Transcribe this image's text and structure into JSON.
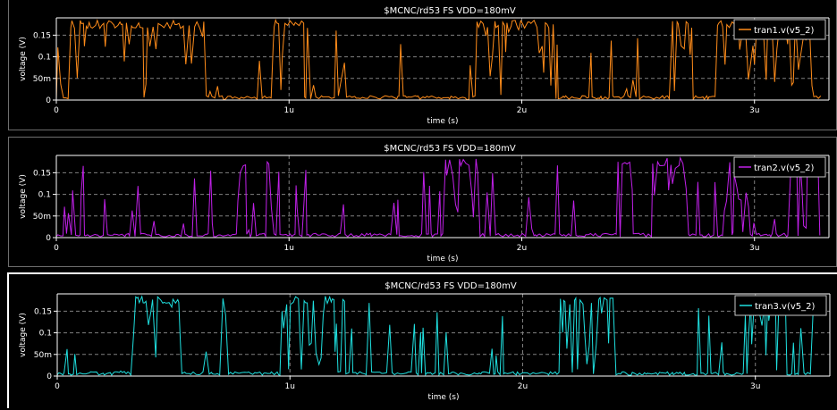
{
  "colors": {
    "background": "#000000",
    "grid": "#808080",
    "axis": "#ffffff",
    "legend_border": "#c8c8c8"
  },
  "chart_data": [
    {
      "type": "line",
      "title": "$MCNC/rd53 FS VDD=180mV",
      "xlabel": "time (s)",
      "ylabel": "voltage (V)",
      "xlim": [
        0,
        3.32
      ],
      "ylim": [
        0,
        0.19
      ],
      "x_ticks": [
        {
          "value": 0,
          "label": "0"
        },
        {
          "value": 1,
          "label": "1u"
        },
        {
          "value": 2,
          "label": "2u"
        },
        {
          "value": 3,
          "label": "3u"
        }
      ],
      "y_ticks": [
        {
          "value": 0,
          "label": "0"
        },
        {
          "value": 0.05,
          "label": "50m"
        },
        {
          "value": 0.1,
          "label": "0.1"
        },
        {
          "value": 0.15,
          "label": "0.15"
        }
      ],
      "grid": true,
      "legend_position": "top-right",
      "series": [
        {
          "name": "tran1.v(v5_2)",
          "color": "#ff8c1a",
          "seed": 11,
          "density": 0.42
        }
      ]
    },
    {
      "type": "line",
      "title": "$MCNC/rd53 FS VDD=180mV",
      "xlabel": "time (s)",
      "ylabel": "voltage (V)",
      "xlim": [
        0,
        3.32
      ],
      "ylim": [
        0,
        0.19
      ],
      "x_ticks": [
        {
          "value": 0,
          "label": "0"
        },
        {
          "value": 1,
          "label": "1u"
        },
        {
          "value": 2,
          "label": "2u"
        },
        {
          "value": 3,
          "label": "3u"
        }
      ],
      "y_ticks": [
        {
          "value": 0,
          "label": "0"
        },
        {
          "value": 0.05,
          "label": "50m"
        },
        {
          "value": 0.1,
          "label": "0.1"
        },
        {
          "value": 0.15,
          "label": "0.15"
        }
      ],
      "grid": true,
      "legend_position": "top-right",
      "series": [
        {
          "name": "tran2.v(v5_2)",
          "color": "#c020e8",
          "seed": 23,
          "density": 0.38
        }
      ]
    },
    {
      "type": "line",
      "title": "$MCNC/rd53 FS VDD=180mV",
      "xlabel": "time (s)",
      "ylabel": "voltage (V)",
      "xlim": [
        0,
        3.32
      ],
      "ylim": [
        0,
        0.19
      ],
      "x_ticks": [
        {
          "value": 0,
          "label": "0"
        },
        {
          "value": 1,
          "label": "1u"
        },
        {
          "value": 2,
          "label": "2u"
        },
        {
          "value": 3,
          "label": "3u"
        }
      ],
      "y_ticks": [
        {
          "value": 0,
          "label": "0"
        },
        {
          "value": 0.05,
          "label": "50m"
        },
        {
          "value": 0.1,
          "label": "0.1"
        },
        {
          "value": 0.15,
          "label": "0.15"
        }
      ],
      "grid": true,
      "legend_position": "top-right",
      "series": [
        {
          "name": "tran3.v(v5_2)",
          "color": "#1fe0e0",
          "seed": 37,
          "density": 0.3
        }
      ]
    }
  ]
}
